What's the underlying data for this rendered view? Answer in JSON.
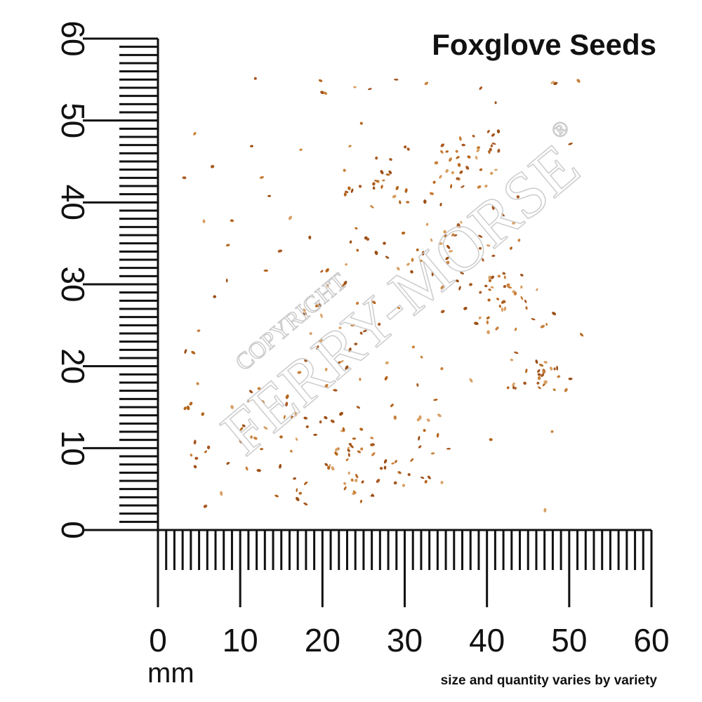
{
  "title": "Foxglove Seeds",
  "ruler": {
    "unit": "mm",
    "x_labels": [
      0,
      10,
      20,
      30,
      40,
      50,
      60
    ],
    "y_labels": [
      0,
      10,
      20,
      30,
      40,
      50,
      60
    ]
  },
  "note": "size and quantity varies by variety",
  "watermark": {
    "brand": "FERRY-MORSE",
    "copyright": "COPYRIGHT",
    "mark": "®"
  }
}
